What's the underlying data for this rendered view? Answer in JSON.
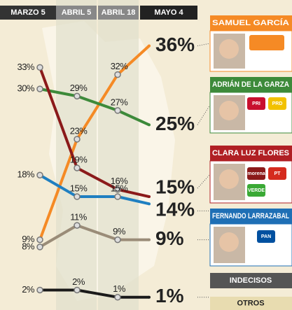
{
  "chart_data": {
    "type": "line",
    "categories": [
      "MARZO 5",
      "ABRIL 5",
      "ABRIL 18",
      "MAYO 4"
    ],
    "ylim": [
      0,
      38
    ],
    "series": [
      {
        "name": "SAMUEL GARCÍA",
        "color": "#f58a25",
        "values": [
          9,
          23,
          32,
          36
        ],
        "value_labels": [
          "9%",
          "23%",
          "32%",
          "36%"
        ]
      },
      {
        "name": "ADRIÁN DE LA GARZA",
        "color": "#3d8a3a",
        "values": [
          30,
          29,
          27,
          25
        ],
        "value_labels": [
          "30%",
          "29%",
          "27%",
          "25%"
        ]
      },
      {
        "name": "CLARA LUZ FLORES",
        "color": "#8b1a1a",
        "values": [
          33,
          19,
          16,
          15
        ],
        "value_labels": [
          "33%",
          "19%",
          "16%",
          "15%"
        ]
      },
      {
        "name": "FERNANDO LARRAZABAL",
        "color": "#1f7fc1",
        "values": [
          18,
          15,
          15,
          14
        ],
        "value_labels": [
          "18%",
          "15%",
          "15%",
          "14%"
        ]
      },
      {
        "name": "INDECISOS",
        "color": "#9a8c78",
        "values": [
          8,
          11,
          9,
          9
        ],
        "value_labels": [
          "8%",
          "11%",
          "9%",
          "9%"
        ]
      },
      {
        "name": "OTROS",
        "color": "#1a1a1a",
        "values": [
          2,
          2,
          1,
          1
        ],
        "value_labels": [
          "2%",
          "2%",
          "1%",
          "1%"
        ]
      }
    ]
  },
  "logos": [
    "PRI",
    "PRD",
    "morena",
    "PT",
    "VERDE",
    "PAN"
  ]
}
